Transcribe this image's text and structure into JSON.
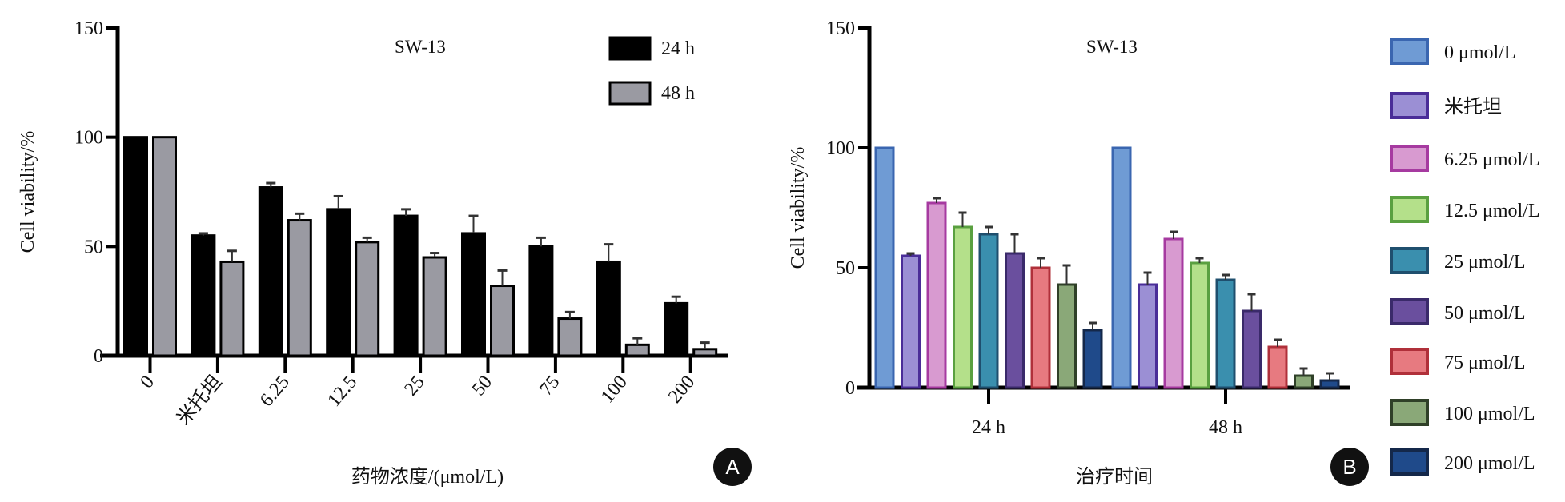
{
  "chart_data": [
    {
      "type": "bar",
      "panel_label": "A",
      "title": "SW-13",
      "xlabel": "药物浓度/(μmol/L)",
      "ylabel": "Cell viability/%",
      "ylim": [
        0,
        150
      ],
      "yticks": [
        "0",
        "50",
        "100",
        "150"
      ],
      "categories": [
        "0",
        "米托坦",
        "6.25",
        "12.5",
        "25",
        "50",
        "75",
        "100",
        "200"
      ],
      "legend_position": "top-right",
      "grid": false,
      "series": [
        {
          "name": "24 h",
          "color": "#000000",
          "border": "#000000",
          "values": [
            100,
            55,
            77,
            67,
            64,
            56,
            50,
            43,
            24
          ],
          "errors": [
            0,
            1,
            2,
            6,
            3,
            8,
            4,
            8,
            3
          ]
        },
        {
          "name": "48 h",
          "color": "#9a9aa2",
          "border": "#000000",
          "values": [
            100,
            43,
            62,
            52,
            45,
            32,
            17,
            5,
            3
          ],
          "errors": [
            0,
            5,
            3,
            2,
            2,
            7,
            3,
            3,
            3
          ]
        }
      ]
    },
    {
      "type": "bar",
      "panel_label": "B",
      "title": "SW-13",
      "xlabel": "治疗时间",
      "ylabel": "Cell viability/%",
      "ylim": [
        0,
        150
      ],
      "yticks": [
        "0",
        "50",
        "100",
        "150"
      ],
      "categories": [
        "24 h",
        "48 h"
      ],
      "legend_position": "right",
      "grid": false,
      "series": [
        {
          "name": "0 μmol/L",
          "color": "#6f9bd4",
          "border": "#3a66b0",
          "values": [
            100,
            100
          ],
          "errors": [
            0,
            0
          ]
        },
        {
          "name": "米托坦",
          "color": "#9b8fd4",
          "border": "#4a2d98",
          "values": [
            55,
            43
          ],
          "errors": [
            1,
            5
          ]
        },
        {
          "name": "6.25 μmol/L",
          "color": "#d89ad0",
          "border": "#a63aa0",
          "values": [
            77,
            62
          ],
          "errors": [
            2,
            3
          ]
        },
        {
          "name": "12.5 μmol/L",
          "color": "#b4e08a",
          "border": "#5aa040",
          "values": [
            67,
            52
          ],
          "errors": [
            6,
            2
          ]
        },
        {
          "name": "25 μmol/L",
          "color": "#3a8fae",
          "border": "#1f4f6e",
          "values": [
            64,
            45
          ],
          "errors": [
            3,
            2
          ]
        },
        {
          "name": "50 μmol/L",
          "color": "#6a4f9e",
          "border": "#3a2a6a",
          "values": [
            56,
            32
          ],
          "errors": [
            8,
            7
          ]
        },
        {
          "name": "75 μmol/L",
          "color": "#e77a80",
          "border": "#b0303a",
          "values": [
            50,
            17
          ],
          "errors": [
            4,
            3
          ]
        },
        {
          "name": "100 μmol/L",
          "color": "#8aa878",
          "border": "#2f4028",
          "values": [
            43,
            5
          ],
          "errors": [
            8,
            3
          ]
        },
        {
          "name": "200 μmol/L",
          "color": "#1f4a8a",
          "border": "#14284a",
          "values": [
            24,
            3
          ],
          "errors": [
            3,
            3
          ]
        }
      ]
    }
  ]
}
